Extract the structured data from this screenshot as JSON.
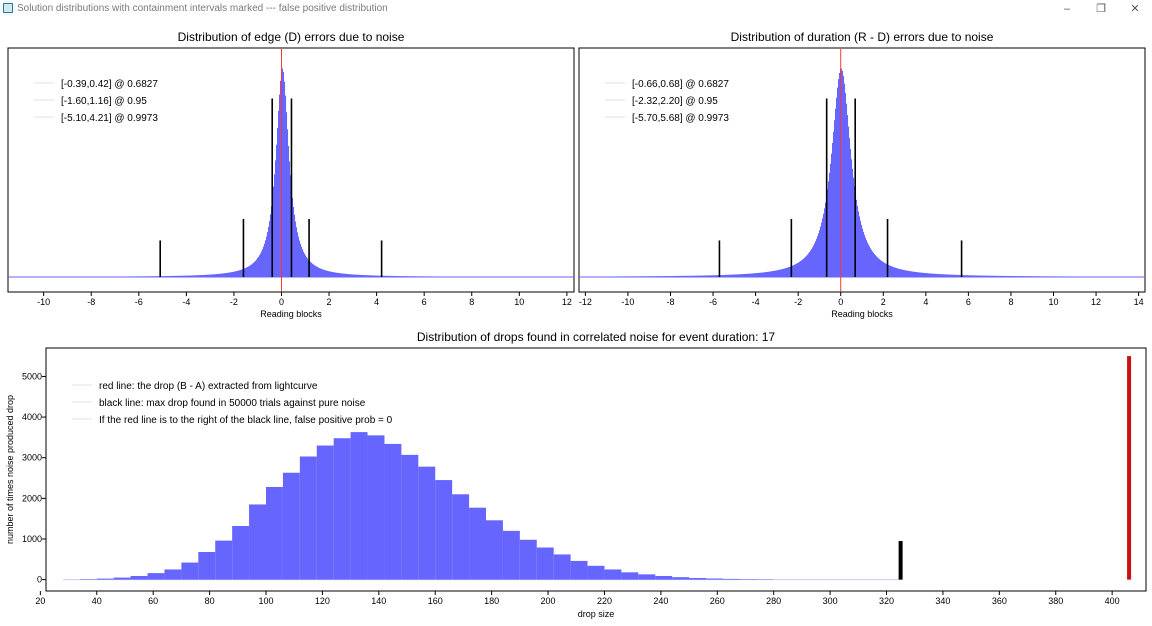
{
  "window": {
    "title": "Solution distributions with containment intervals marked --- false positive distribution",
    "icon": "app-icon",
    "controls": {
      "minimize": "–",
      "restore": "❐",
      "close": "✕"
    }
  },
  "chart_data": [
    {
      "type": "bar",
      "title": "Distribution of edge (D) errors due to noise",
      "xlabel": "Reading blocks",
      "ylabel": "",
      "xlim": [
        -11.5,
        12.3
      ],
      "xticks": [
        -10,
        -8,
        -6,
        -4,
        -2,
        0,
        2,
        4,
        6,
        8,
        10,
        12
      ],
      "legend_placement": "top-left",
      "legend": [
        "[-0.39,0.42] @ 0.6827",
        "[-1.60,1.16] @ 0.95",
        "[-5.10,4.21] @ 0.9973"
      ],
      "histogram": {
        "center": 0.02,
        "scale": 0.33,
        "peak_fraction": 0.97
      },
      "red_line_x": 0.0,
      "interval_lines": [
        {
          "x": -0.39,
          "height_fraction": 0.83
        },
        {
          "x": 0.42,
          "height_fraction": 0.83
        },
        {
          "x": -1.6,
          "height_fraction": 0.27
        },
        {
          "x": 1.16,
          "height_fraction": 0.27
        },
        {
          "x": -5.1,
          "height_fraction": 0.17
        },
        {
          "x": 4.21,
          "height_fraction": 0.17
        }
      ],
      "colors": {
        "histogram": "#6666ff",
        "red_line": "#ff3333",
        "interval_lines": "#000000"
      }
    },
    {
      "type": "bar",
      "title": "Distribution of duration (R - D) errors due to noise",
      "xlabel": "Reading blocks",
      "ylabel": "",
      "xlim": [
        -12.3,
        14.3
      ],
      "xticks": [
        -12,
        -10,
        -8,
        -6,
        -4,
        -2,
        0,
        2,
        4,
        6,
        8,
        10,
        12,
        14
      ],
      "legend_placement": "top-left",
      "legend": [
        "[-0.66,0.68] @ 0.6827",
        "[-2.32,2.20] @ 0.95",
        "[-5.70,5.68] @ 0.9973"
      ],
      "histogram": {
        "center": 0.0,
        "scale": 0.55,
        "peak_fraction": 0.97
      },
      "red_line_x": 0.0,
      "interval_lines": [
        {
          "x": -0.66,
          "height_fraction": 0.83
        },
        {
          "x": 0.68,
          "height_fraction": 0.83
        },
        {
          "x": -2.32,
          "height_fraction": 0.27
        },
        {
          "x": 2.2,
          "height_fraction": 0.27
        },
        {
          "x": -5.7,
          "height_fraction": 0.17
        },
        {
          "x": 5.68,
          "height_fraction": 0.17
        }
      ],
      "colors": {
        "histogram": "#6666ff",
        "red_line": "#ff3333",
        "interval_lines": "#000000"
      }
    },
    {
      "type": "bar",
      "title": "Distribution of drops found in correlated noise for event duration: 17",
      "xlabel": "drop size",
      "ylabel": "number of times noise produced drop",
      "xlim": [
        22,
        412
      ],
      "ylim": [
        -280,
        5700
      ],
      "xticks": [
        20,
        40,
        60,
        80,
        100,
        120,
        140,
        160,
        180,
        200,
        220,
        240,
        260,
        280,
        300,
        320,
        340,
        360,
        380,
        400
      ],
      "yticks": [
        0,
        1000,
        2000,
        3000,
        4000,
        5000
      ],
      "legend_placement": "top-left",
      "legend": [
        "red line: the drop (B - A) extracted from lightcurve",
        "black line: max drop found in 50000 trials against pure noise",
        "If the red line is to the right of the black line, false positive prob = 0"
      ],
      "bin_width": 6,
      "bin_starts": [
        28,
        34,
        40,
        46,
        52,
        58,
        64,
        70,
        76,
        82,
        88,
        94,
        100,
        106,
        112,
        118,
        124,
        130,
        136,
        142,
        148,
        154,
        160,
        166,
        172,
        178,
        184,
        190,
        196,
        202,
        208,
        214,
        220,
        226,
        232,
        238,
        244,
        250,
        256,
        262,
        268,
        274,
        280,
        286,
        292,
        298,
        304,
        310,
        316,
        322
      ],
      "counts": [
        5,
        10,
        25,
        50,
        90,
        160,
        250,
        420,
        680,
        960,
        1320,
        1850,
        2280,
        2630,
        3030,
        3300,
        3480,
        3630,
        3550,
        3340,
        3070,
        2780,
        2450,
        2100,
        1770,
        1460,
        1200,
        980,
        790,
        620,
        460,
        340,
        250,
        180,
        130,
        90,
        60,
        40,
        28,
        18,
        12,
        8,
        6,
        4,
        3,
        2,
        2,
        1,
        1,
        1
      ],
      "black_line": {
        "x": 325,
        "y_top": 950
      },
      "red_line": {
        "x": 406,
        "y_top": 5500
      },
      "colors": {
        "histogram": "#6666ff",
        "red_line": "#cc1111",
        "black_line": "#000000"
      }
    }
  ]
}
